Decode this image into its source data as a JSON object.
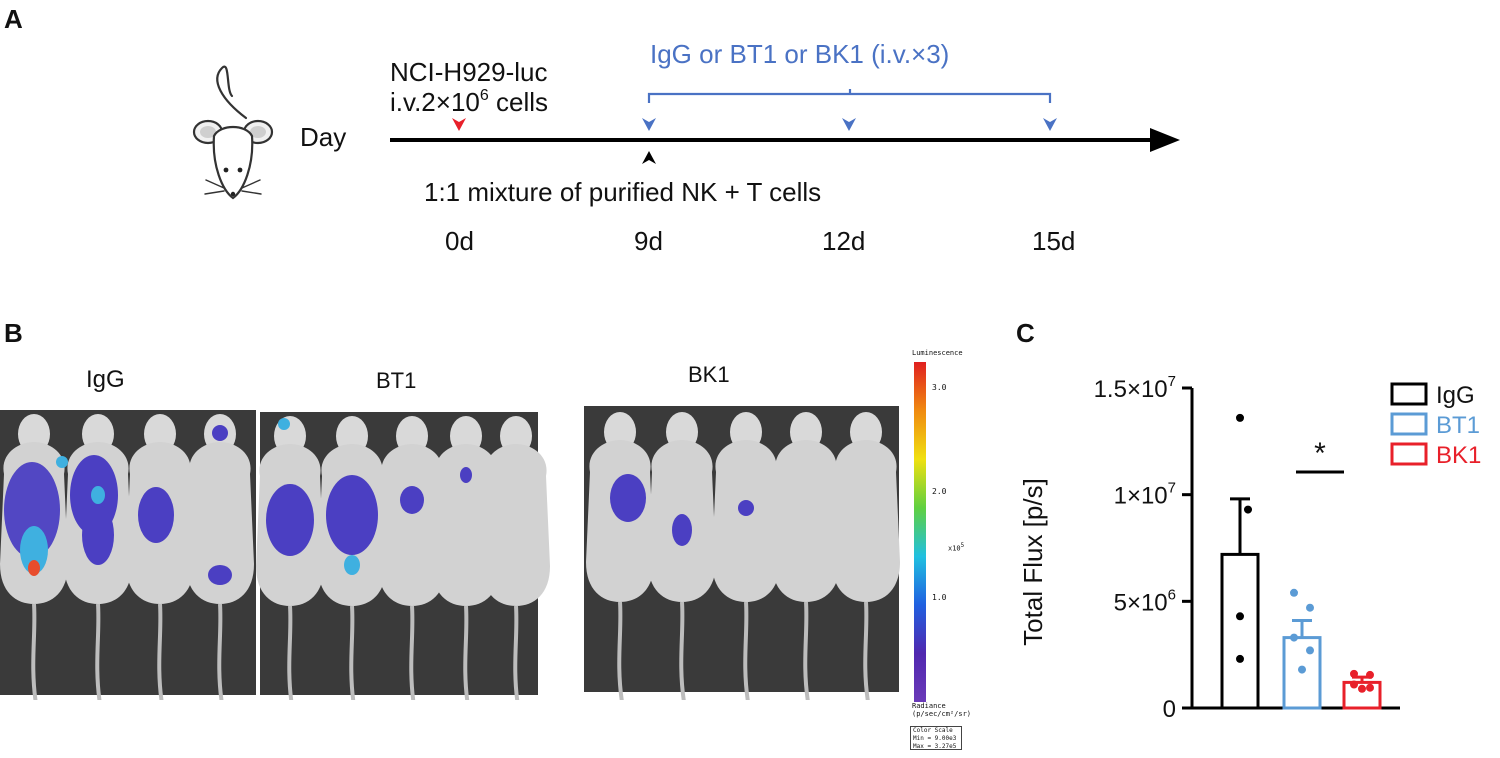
{
  "panels": {
    "a": "A",
    "b": "B",
    "c": "C"
  },
  "timeline": {
    "cells_line1": "NCI-H929-luc",
    "cells_line2_pre": "i.v.2×10",
    "cells_line2_sup": "6",
    "cells_line2_post": " cells",
    "treatment_label": "IgG or BT1 or BK1 (i.v.×3)",
    "day_label": "Day",
    "nk_label": "1:1 mixture of purified NK + T cells",
    "days": [
      "0d",
      "9d",
      "12d",
      "15d"
    ],
    "colors": {
      "injection": "#e8202a",
      "treatment": "#4a72c4",
      "axis": "#000000"
    }
  },
  "imaging": {
    "groups": [
      "IgG",
      "BT1",
      "BK1"
    ],
    "scale": {
      "title": "Luminescence",
      "ticks": [
        "3.0",
        "2.0",
        "1.0"
      ],
      "exponent_label": "x10",
      "exponent_sup": "5",
      "unit_line1": "Radiance",
      "unit_line2": "(p/sec/cm²/sr)",
      "color_scale_title": "Color Scale",
      "min_label": "Min = 9.00e3",
      "max_label": "Max = 3.27e5"
    }
  },
  "chart_data": {
    "type": "bar",
    "ylabel": "Total Flux [p/s]",
    "ylim": [
      0,
      15000000
    ],
    "yticks": [
      {
        "value": 0,
        "label": "0",
        "sup": ""
      },
      {
        "value": 5000000,
        "label": "5×10",
        "sup": "6"
      },
      {
        "value": 10000000,
        "label": "1×10",
        "sup": "7"
      },
      {
        "value": 15000000,
        "label": "1.5×10",
        "sup": "7"
      }
    ],
    "categories": [
      "IgG",
      "BT1",
      "BK1"
    ],
    "colors": [
      "#000000",
      "#5b9bd5",
      "#e8202a"
    ],
    "means": [
      7200000,
      3300000,
      1200000
    ],
    "sem": [
      2600000,
      800000,
      250000
    ],
    "points": [
      [
        13600000,
        9300000,
        4300000,
        2300000
      ],
      [
        5400000,
        4700000,
        3300000,
        2700000,
        1800000
      ],
      [
        1600000,
        1550000,
        1100000,
        950000,
        900000
      ]
    ],
    "significance": {
      "label": "*"
    },
    "legend": {
      "position": "top-right",
      "entries": [
        "IgG",
        "BT1",
        "BK1"
      ]
    }
  }
}
